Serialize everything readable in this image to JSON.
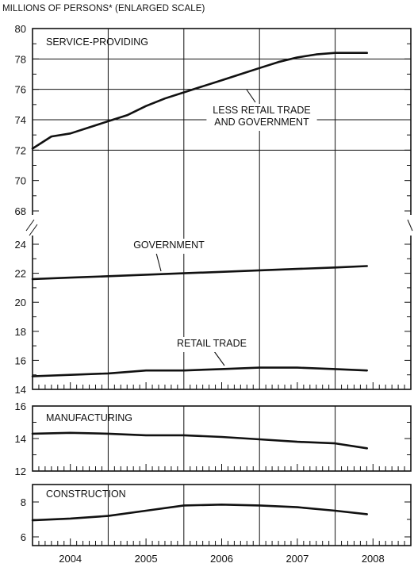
{
  "header": {
    "title": "MILLIONS OF PERSONS* (ENLARGED SCALE)"
  },
  "chart_data": [
    {
      "type": "line",
      "panel": "service-providing",
      "label": "SERVICE-PROVIDING",
      "upper_segment": {
        "ylim": [
          68,
          80
        ],
        "yticks": [
          68,
          70,
          72,
          74,
          76,
          78,
          80
        ],
        "series": [
          {
            "name": "LESS RETAIL TRADE AND GOVERNMENT",
            "x": [
              2004.0,
              2004.25,
              2004.5,
              2004.75,
              2005.0,
              2005.25,
              2005.5,
              2005.75,
              2006.0,
              2006.25,
              2006.5,
              2006.75,
              2007.0,
              2007.25,
              2007.5,
              2007.75,
              2008.0,
              2008.25,
              2008.42
            ],
            "values": [
              72.1,
              72.9,
              73.1,
              73.5,
              73.9,
              74.3,
              74.9,
              75.4,
              75.8,
              76.2,
              76.6,
              77.0,
              77.4,
              77.8,
              78.1,
              78.3,
              78.4,
              78.4,
              78.4
            ]
          }
        ]
      },
      "lower_segment": {
        "ylim": [
          14,
          24
        ],
        "yticks": [
          14,
          16,
          18,
          20,
          22,
          24
        ],
        "series": [
          {
            "name": "GOVERNMENT",
            "x": [
              2004.0,
              2004.5,
              2005.0,
              2005.5,
              2006.0,
              2006.5,
              2007.0,
              2007.5,
              2008.0,
              2008.42
            ],
            "values": [
              21.6,
              21.7,
              21.8,
              21.9,
              22.0,
              22.1,
              22.2,
              22.3,
              22.4,
              22.5
            ]
          },
          {
            "name": "RETAIL TRADE",
            "x": [
              2004.0,
              2004.5,
              2005.0,
              2005.5,
              2006.0,
              2006.5,
              2007.0,
              2007.5,
              2008.0,
              2008.42
            ],
            "values": [
              14.9,
              15.0,
              15.1,
              15.3,
              15.3,
              15.4,
              15.5,
              15.5,
              15.4,
              15.3
            ]
          }
        ]
      },
      "annotations": [
        {
          "lines": [
            "LESS RETAIL TRADE",
            "AND GOVERNMENT"
          ]
        },
        {
          "lines": [
            "GOVERNMENT"
          ]
        },
        {
          "lines": [
            "RETAIL TRADE"
          ]
        }
      ],
      "scale_break": true,
      "grid": "vertical"
    },
    {
      "type": "line",
      "panel": "manufacturing",
      "label": "MANUFACTURING",
      "ylim": [
        12,
        16
      ],
      "yticks": [
        12,
        14,
        16
      ],
      "series": [
        {
          "name": "MANUFACTURING",
          "x": [
            2004.0,
            2004.5,
            2005.0,
            2005.5,
            2006.0,
            2006.5,
            2007.0,
            2007.5,
            2008.0,
            2008.42
          ],
          "values": [
            14.3,
            14.35,
            14.3,
            14.2,
            14.2,
            14.1,
            13.95,
            13.8,
            13.7,
            13.4
          ]
        }
      ],
      "grid": "vertical"
    },
    {
      "type": "line",
      "panel": "construction",
      "label": "CONSTRUCTION",
      "ylim": [
        5.5,
        9
      ],
      "yticks": [
        6,
        8
      ],
      "series": [
        {
          "name": "CONSTRUCTION",
          "x": [
            2004.0,
            2004.5,
            2005.0,
            2005.5,
            2006.0,
            2006.5,
            2007.0,
            2007.5,
            2008.0,
            2008.42
          ],
          "values": [
            6.95,
            7.05,
            7.2,
            7.5,
            7.8,
            7.85,
            7.8,
            7.7,
            7.5,
            7.3
          ]
        }
      ],
      "grid": "vertical"
    }
  ],
  "x_axis": {
    "range": [
      2004.0,
      2009.0
    ],
    "tick_labels": [
      "2004",
      "2005",
      "2006",
      "2007",
      "2008"
    ]
  }
}
